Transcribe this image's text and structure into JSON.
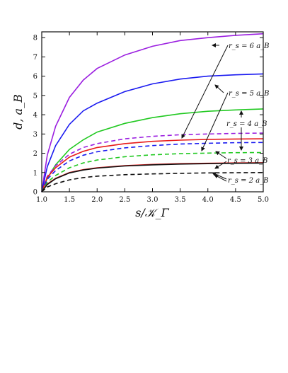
{
  "chart_data": {
    "type": "line",
    "title": "",
    "xlabel": "s/𝒦_Γ",
    "ylabel": "d, a_B",
    "xlim": [
      1.0,
      5.0
    ],
    "ylim": [
      0,
      8.3
    ],
    "x_ticks": [
      "1.0",
      "1.5",
      "2.0",
      "2.5",
      "3.0",
      "3.5",
      "4.0",
      "4.5",
      "5.0"
    ],
    "y_ticks": [
      "0",
      "1",
      "2",
      "3",
      "4",
      "5",
      "6",
      "7",
      "8"
    ],
    "grid": false,
    "legend": "none",
    "x": [
      1.0,
      1.1,
      1.25,
      1.5,
      1.75,
      2.0,
      2.5,
      3.0,
      3.5,
      4.0,
      4.5,
      5.0
    ],
    "series": [
      {
        "color": "#9b1fe0",
        "dash": "solid",
        "values": [
          0.0,
          1.9,
          3.4,
          4.9,
          5.8,
          6.4,
          7.1,
          7.55,
          7.85,
          8.0,
          8.12,
          8.2
        ]
      },
      {
        "color": "#1a1af0",
        "dash": "solid",
        "values": [
          0.0,
          1.3,
          2.4,
          3.5,
          4.2,
          4.6,
          5.2,
          5.6,
          5.85,
          6.0,
          6.07,
          6.12
        ]
      },
      {
        "color": "#22c922",
        "dash": "solid",
        "values": [
          0.0,
          0.7,
          1.4,
          2.2,
          2.7,
          3.1,
          3.55,
          3.85,
          4.05,
          4.18,
          4.25,
          4.3
        ]
      },
      {
        "color": "#9b1fe0",
        "dash": "dashed",
        "values": [
          0.0,
          0.8,
          1.35,
          1.95,
          2.3,
          2.5,
          2.75,
          2.88,
          2.96,
          3.0,
          3.03,
          3.05
        ]
      },
      {
        "color": "#e81a1a",
        "dash": "solid",
        "values": [
          0.0,
          0.75,
          1.25,
          1.8,
          2.1,
          2.3,
          2.5,
          2.62,
          2.68,
          2.72,
          2.74,
          2.75
        ]
      },
      {
        "color": "#1a1af0",
        "dash": "dashed",
        "values": [
          0.0,
          0.65,
          1.1,
          1.6,
          1.9,
          2.08,
          2.28,
          2.4,
          2.48,
          2.52,
          2.55,
          2.56
        ]
      },
      {
        "color": "#22c922",
        "dash": "dashed",
        "values": [
          0.0,
          0.5,
          0.85,
          1.25,
          1.5,
          1.65,
          1.82,
          1.92,
          1.98,
          2.01,
          2.03,
          2.04
        ]
      },
      {
        "color": "#e81a1a",
        "dash": "solid",
        "values": [
          0.0,
          0.4,
          0.7,
          1.0,
          1.15,
          1.25,
          1.36,
          1.42,
          1.46,
          1.48,
          1.5,
          1.51
        ]
      },
      {
        "color": "#111111",
        "dash": "solid",
        "values": [
          0.0,
          0.38,
          0.68,
          0.98,
          1.13,
          1.23,
          1.34,
          1.4,
          1.44,
          1.46,
          1.48,
          1.49
        ]
      },
      {
        "color": "#111111",
        "dash": "dashed",
        "values": [
          0.0,
          0.25,
          0.42,
          0.62,
          0.74,
          0.81,
          0.89,
          0.93,
          0.96,
          0.98,
          0.99,
          1.0
        ]
      }
    ],
    "annotations": [
      {
        "text": "r_s = 6 a_B"
      },
      {
        "text": "r_s = 5 a_B"
      },
      {
        "text": "r_s = 4 a_B"
      },
      {
        "text": "r_s = 3 a_B"
      },
      {
        "text": "r_s = 2 a_B"
      }
    ]
  }
}
